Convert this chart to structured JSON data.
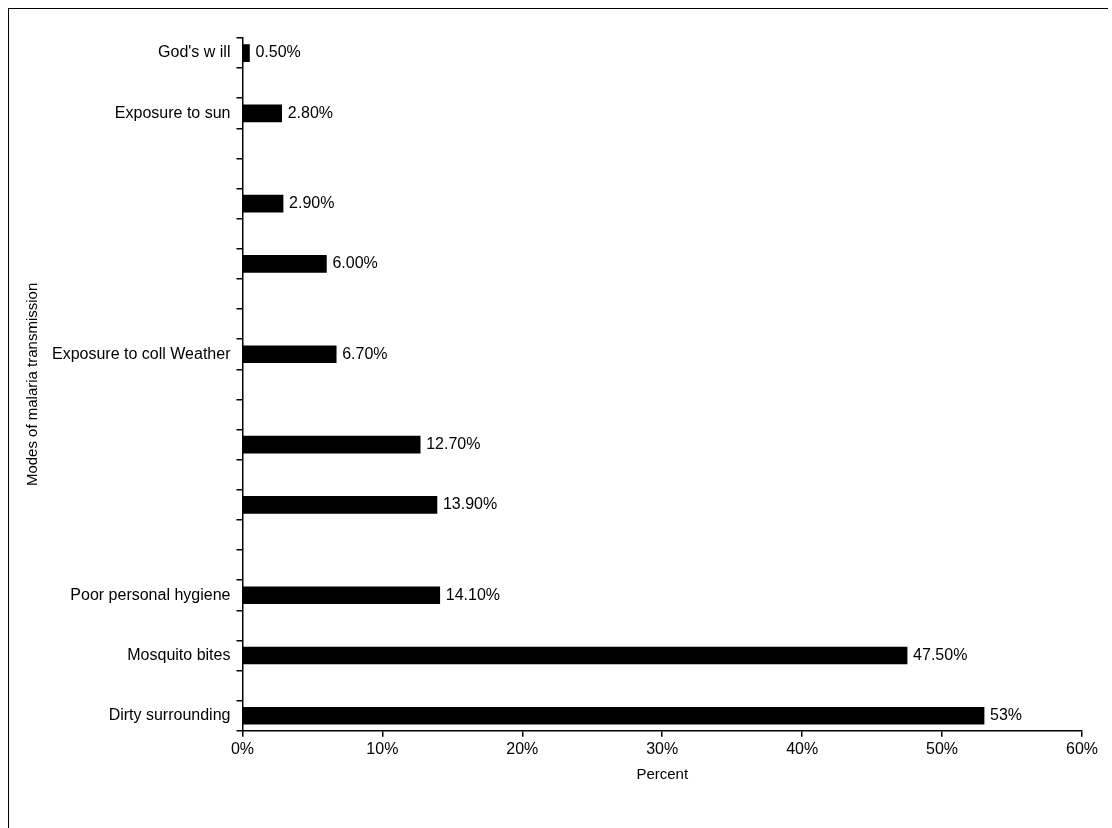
{
  "chart_data": {
    "type": "bar",
    "orientation": "horizontal",
    "xlabel": "Percent",
    "ylabel": "Modes of malaria transmission",
    "categories": [
      "God's w ill",
      null,
      "Exposure to sun",
      null,
      null,
      null,
      null,
      null,
      null,
      null,
      "Exposure to coll Weather",
      null,
      null,
      null,
      null,
      null,
      null,
      null,
      "Poor personal hygiene",
      null,
      "Mosquito bites",
      null,
      "Dirty surrounding"
    ],
    "values": [
      0.5,
      null,
      2.8,
      null,
      null,
      2.9,
      null,
      6.0,
      null,
      null,
      6.7,
      null,
      null,
      12.7,
      null,
      13.9,
      null,
      null,
      14.1,
      null,
      47.5,
      null,
      53
    ],
    "value_labels": [
      "0.50%",
      null,
      "2.80%",
      null,
      null,
      "2.90%",
      null,
      "6.00%",
      null,
      null,
      "6.70%",
      null,
      null,
      "12.70%",
      null,
      "13.90%",
      null,
      null,
      "14.10%",
      null,
      "47.50%",
      null,
      "53%"
    ],
    "color": "#000000",
    "xlim": [
      0,
      60
    ],
    "xticks": [
      {
        "value": 0,
        "label": "0%"
      },
      {
        "value": 10,
        "label": "10%"
      },
      {
        "value": 20,
        "label": "20%"
      },
      {
        "value": 30,
        "label": "30%"
      },
      {
        "value": 40,
        "label": "40%"
      },
      {
        "value": 50,
        "label": "50%"
      },
      {
        "value": 60,
        "label": "60%"
      }
    ],
    "grid": false,
    "legend": false
  }
}
